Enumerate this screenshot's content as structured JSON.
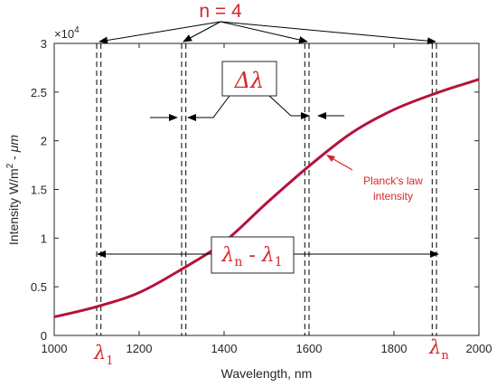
{
  "chart_data": {
    "type": "line",
    "xlabel": "Wavelength, nm",
    "ylabel_main": "Intensity W/m",
    "ylabel_sup": "2",
    "ylabel_tail": " - ",
    "ylabel_unit": "μm",
    "y_exponent_label": "×10",
    "y_exponent_power": "4",
    "xlim": [
      1000,
      2000
    ],
    "ylim": [
      0,
      30000
    ],
    "xticks": [
      "1000",
      "1200",
      "1400",
      "1600",
      "1800",
      "2000"
    ],
    "yticks": [
      "0",
      "0.5",
      "1",
      "1.5",
      "2",
      "2.5",
      "3"
    ],
    "colors": {
      "curve": "#b5123a",
      "annotation": "#d6262a",
      "axis": "#262626"
    },
    "series": [
      {
        "x": [
          1000,
          1100,
          1200,
          1300,
          1400,
          1500,
          1600,
          1700,
          1800,
          1900,
          2000
        ],
        "y": [
          1900,
          2950,
          4400,
          6800,
          9600,
          13600,
          17400,
          20800,
          23200,
          24900,
          26300
        ]
      }
    ],
    "dashed_pairs": [
      [
        1100,
        1110
      ],
      [
        1300,
        1310
      ],
      [
        1590,
        1600
      ],
      [
        1890,
        1900
      ]
    ],
    "annotations": {
      "n_label": "n = 4",
      "delta_lambda": "Δλ",
      "curve_note_line1": "Planck's law",
      "curve_note_line2": "intensity",
      "span_lambda": "λ",
      "span_sub_n": "n",
      "span_minus": " - ",
      "span_sub_1": "1",
      "lambda1_main": "λ",
      "lambda1_sub": "1",
      "lambdan_main": "λ",
      "lambdan_sub": "n"
    }
  }
}
